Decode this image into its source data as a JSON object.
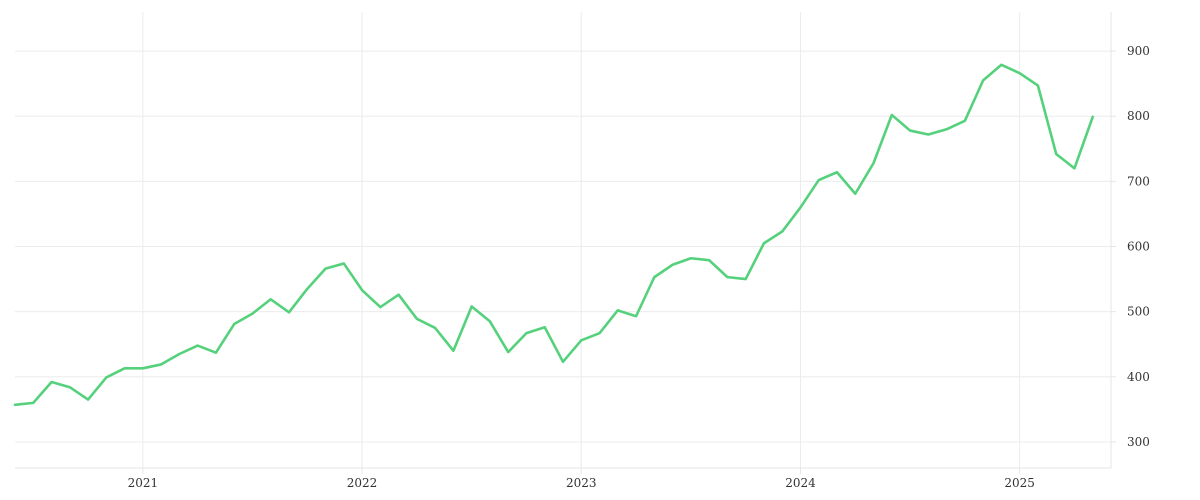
{
  "chart_data": {
    "type": "line",
    "title": "",
    "xlabel": "",
    "ylabel": "",
    "x_tick_labels": [
      "2021",
      "2022",
      "2023",
      "2024",
      "2025"
    ],
    "x_ticks": [
      "2021-01",
      "2022-01",
      "2023-01",
      "2024-01",
      "2025-01"
    ],
    "y_ticks": [
      300,
      400,
      500,
      600,
      700,
      800,
      900
    ],
    "y_axis_position": "right",
    "xlim": [
      "2020-06",
      "2025-06"
    ],
    "ylim": [
      260,
      960
    ],
    "grid": true,
    "legend": "none",
    "color": "#55d17c",
    "series": [
      {
        "x": [
          "2020-06",
          "2020-07",
          "2020-08",
          "2020-09",
          "2020-10",
          "2020-11",
          "2020-12",
          "2021-01",
          "2021-02",
          "2021-03",
          "2021-04",
          "2021-05",
          "2021-06",
          "2021-07",
          "2021-08",
          "2021-09",
          "2021-10",
          "2021-11",
          "2021-12",
          "2022-01",
          "2022-02",
          "2022-03",
          "2022-04",
          "2022-05",
          "2022-06",
          "2022-07",
          "2022-08",
          "2022-09",
          "2022-10",
          "2022-11",
          "2022-12",
          "2023-01",
          "2023-02",
          "2023-03",
          "2023-04",
          "2023-05",
          "2023-06",
          "2023-07",
          "2023-08",
          "2023-09",
          "2023-10",
          "2023-11",
          "2023-12",
          "2024-01",
          "2024-02",
          "2024-03",
          "2024-04",
          "2024-05",
          "2024-06",
          "2024-07",
          "2024-08",
          "2024-09",
          "2024-10",
          "2024-11",
          "2024-12",
          "2025-01",
          "2025-02",
          "2025-03",
          "2025-04",
          "2025-05"
        ],
        "values": [
          357,
          360,
          392,
          384,
          365,
          399,
          413,
          413,
          419,
          435,
          448,
          437,
          481,
          497,
          519,
          499,
          535,
          566,
          574,
          533,
          507,
          526,
          489,
          475,
          440,
          508,
          485,
          438,
          467,
          476,
          423,
          456,
          467,
          502,
          493,
          553,
          572,
          582,
          579,
          553,
          550,
          605,
          623,
          660,
          702,
          714,
          681,
          728,
          802,
          778,
          772,
          780,
          793,
          855,
          879,
          866,
          847,
          742,
          720,
          799
        ]
      }
    ]
  }
}
